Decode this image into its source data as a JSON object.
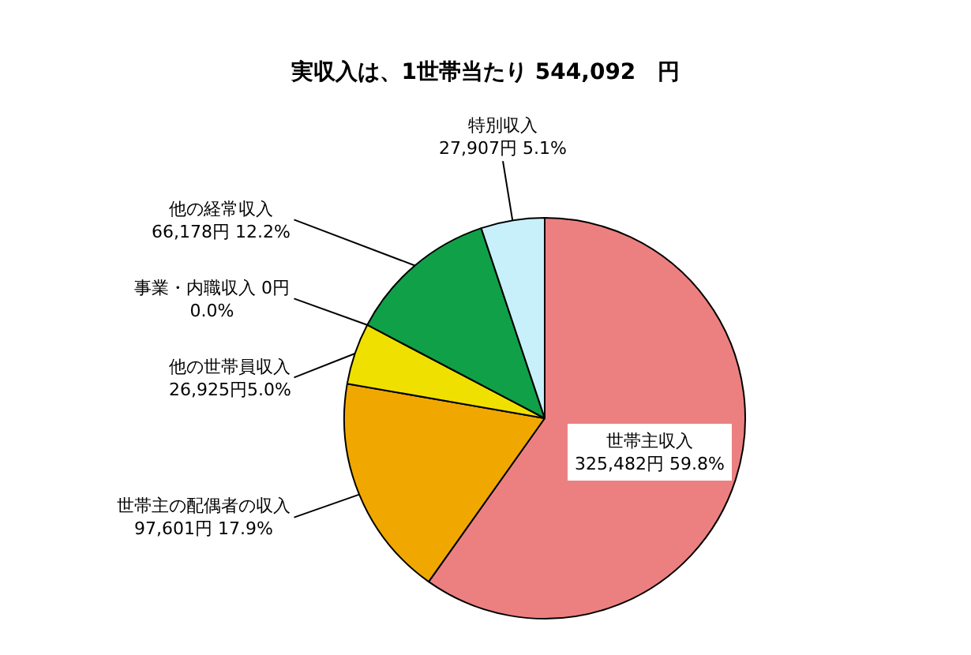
{
  "chart_data": {
    "type": "pie",
    "title": "実収入は、1世帯当たり 544,092　円",
    "categories": [
      "世帯主収入",
      "世帯主の配偶者の収入",
      "他の世帯員収入",
      "事業・内職収入",
      "他の経常収入",
      "特別収入"
    ],
    "values": [
      325482,
      97601,
      26925,
      0,
      66178,
      27907
    ],
    "value_labels": [
      "325,482円 59.8%",
      "97,601円 17.9%",
      "26,925円5.0%",
      "0円\n0.0%",
      "66,178円 12.2%",
      "27,907円 5.1%"
    ],
    "colors": [
      "#ec8080",
      "#f0a800",
      "#f0e000",
      "#8080c0",
      "#10a048",
      "#c8f0fa"
    ]
  }
}
